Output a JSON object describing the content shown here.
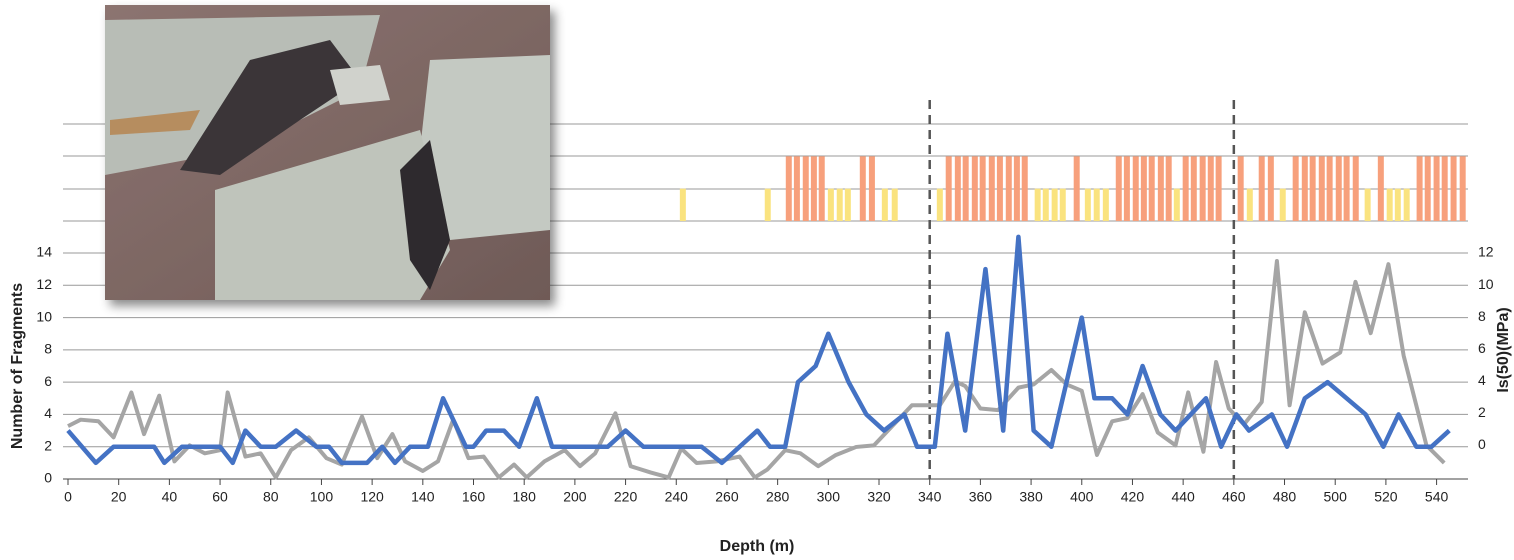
{
  "chart_data": [
    {
      "type": "line",
      "xlabel": "Depth (m)",
      "ylabel": "Number of Fragments",
      "y2label": "Is(50)(MPa)",
      "xlim": [
        0,
        552
      ],
      "xticks": [
        0,
        20,
        40,
        60,
        80,
        100,
        120,
        140,
        160,
        180,
        200,
        220,
        240,
        260,
        280,
        300,
        320,
        340,
        360,
        380,
        400,
        420,
        440,
        460,
        480,
        500,
        520,
        540
      ],
      "ylim": [
        0,
        14
      ],
      "yticks": [
        0,
        2,
        4,
        6,
        8,
        10,
        12,
        14
      ],
      "y2lim": [
        -2.1,
        12
      ],
      "y2ticks": [
        0,
        2,
        4,
        6,
        8,
        10,
        12
      ],
      "grid": true,
      "dividers": [
        340,
        460
      ],
      "series": [
        {
          "color": "#4472c4",
          "x": [
            0,
            11,
            18,
            34,
            38,
            45,
            60,
            65,
            70,
            76,
            82,
            90,
            98,
            103,
            108,
            118,
            124,
            129,
            135,
            142,
            148,
            157,
            160,
            165,
            172,
            178,
            185,
            191,
            213,
            220,
            227,
            250,
            258,
            272,
            277,
            283,
            288,
            295,
            300,
            308,
            315,
            322,
            330,
            335,
            342,
            347,
            354,
            362,
            369,
            375,
            381,
            388,
            400,
            405,
            412,
            418,
            424,
            431,
            437,
            449,
            455,
            461,
            466,
            475,
            481,
            488,
            497,
            512,
            519,
            525,
            532,
            538,
            545
          ],
          "values": [
            3,
            1,
            2,
            2,
            1,
            2,
            2,
            1,
            3,
            2,
            2,
            3,
            2,
            2,
            1,
            1,
            2,
            1,
            2,
            2,
            5,
            2,
            2,
            3,
            3,
            2,
            5,
            2,
            2,
            3,
            2,
            2,
            1,
            3,
            2,
            2,
            6,
            7,
            9,
            6,
            4,
            3,
            4,
            2,
            2,
            9,
            3,
            13,
            3,
            15,
            3,
            2,
            10,
            5,
            5,
            4,
            7,
            4,
            3,
            5,
            2,
            4,
            3,
            4,
            2,
            5,
            6,
            4,
            2,
            4,
            2,
            2,
            3
          ]
        },
        {
          "color": "#a5a5a5",
          "axis": "y2",
          "x": [
            0,
            5,
            12,
            18,
            25,
            30,
            36,
            42,
            48,
            54,
            60,
            63,
            70,
            76,
            82,
            88,
            95,
            102,
            108,
            116,
            122,
            128,
            133,
            140,
            146,
            152,
            158,
            164,
            170,
            176,
            181,
            188,
            196,
            202,
            208,
            216,
            222,
            230,
            237,
            242,
            248,
            256,
            265,
            271,
            276,
            283,
            289,
            296,
            303,
            311,
            318,
            324,
            333,
            338,
            344,
            350,
            354,
            360,
            367,
            375,
            381,
            388,
            394,
            400,
            406,
            412,
            418,
            424,
            430,
            437,
            442,
            448,
            453,
            458,
            464,
            471,
            477,
            482,
            488,
            495,
            502,
            508,
            514,
            521,
            527,
            536,
            543
          ],
          "values": [
            1.2,
            1.6,
            1.5,
            0.5,
            3.3,
            0.7,
            3.1,
            -1,
            0,
            -0.5,
            -0.3,
            3.3,
            -0.7,
            -0.5,
            -2,
            -0.3,
            0.5,
            -0.8,
            -1.2,
            1.8,
            -0.8,
            0.7,
            -1,
            -1.6,
            -1,
            1.6,
            -0.8,
            -0.7,
            -2,
            -1.2,
            -2,
            -1,
            -0.3,
            -1.3,
            -0.5,
            2,
            -1.3,
            -1.7,
            -2,
            -0.2,
            -1.1,
            -1,
            -0.7,
            -2,
            -1.5,
            -0.3,
            -0.5,
            -1.3,
            -0.6,
            -0.1,
            0,
            1,
            2.5,
            2.5,
            2.5,
            4,
            3.7,
            2.3,
            2.2,
            3.6,
            3.8,
            4.7,
            3.8,
            3.4,
            -0.6,
            1.5,
            1.7,
            3.2,
            0.8,
            0,
            3.3,
            -0.4,
            5.2,
            2.3,
            1.3,
            2.7,
            11.5,
            2.5,
            8.3,
            5.1,
            5.8,
            10.2,
            7,
            11.3,
            5.6,
            0,
            -1.1
          ]
        }
      ]
    },
    {
      "type": "bar",
      "xlim": [
        0,
        552
      ],
      "ylim": [
        0,
        3
      ],
      "series": [
        {
          "color": "#f7a07c",
          "x": [
            284.4,
            287.6,
            291.1,
            294.3,
            297.4,
            313.6,
            317.2,
            347.5,
            351.1,
            354.2,
            357.8,
            360.9,
            364.5,
            367.7,
            371.2,
            374.4,
            377.5,
            398,
            414.6,
            417.8,
            421.3,
            424.5,
            427.6,
            431.2,
            434.3,
            441,
            444.2,
            447.7,
            450.9,
            454,
            462.7,
            471,
            474.6,
            484.4,
            488,
            491.1,
            494.7,
            497.8,
            501.4,
            504.5,
            508.1,
            518,
            533.3,
            536.5,
            540,
            543.2,
            546.7,
            550.3
          ],
          "values": [
            2,
            2,
            2,
            2,
            2,
            2,
            2,
            2,
            2,
            2,
            2,
            2,
            2,
            2,
            2,
            2,
            2,
            2,
            2,
            2,
            2,
            2,
            2,
            2,
            2,
            2,
            2,
            2,
            2,
            2,
            2,
            2,
            2,
            2,
            2,
            2,
            2,
            2,
            2,
            2,
            2,
            2,
            2,
            2,
            2,
            2,
            2,
            2
          ]
        },
        {
          "color": "#fae37f",
          "x": [
            242.6,
            276.1,
            301,
            304.5,
            307.7,
            322.3,
            326.2,
            344,
            382.6,
            385.8,
            389.3,
            392.5,
            402.4,
            405.9,
            409.5,
            437.5,
            466.3,
            479.3,
            512.8,
            521.5,
            524.7,
            528.2
          ],
          "values": [
            1,
            1,
            1,
            1,
            1,
            1,
            1,
            1,
            1,
            1,
            1,
            1,
            1,
            1,
            1,
            1,
            1,
            1,
            1,
            1,
            1,
            1
          ]
        }
      ]
    }
  ]
}
